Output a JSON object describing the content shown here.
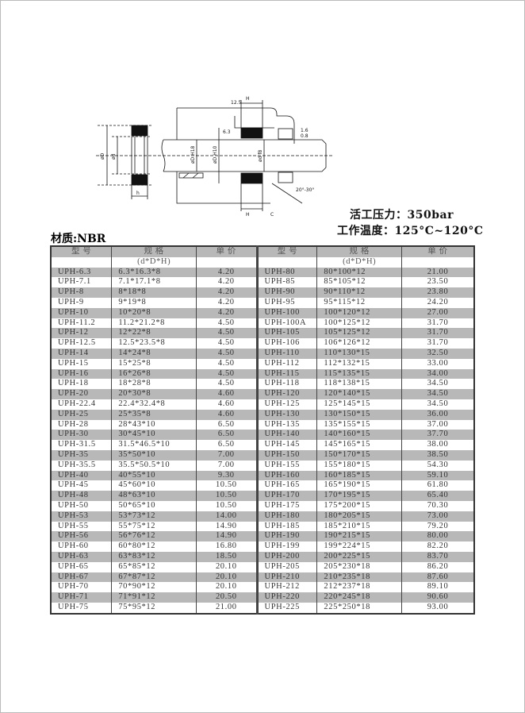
{
  "specs": {
    "pressure": "活工压力：350bar",
    "temperature": "工作温度：125°C~120°C"
  },
  "material": "材质:NBR",
  "drawing_labels": {
    "D": "øD",
    "d": "ød",
    "h": "h",
    "H_top": "H",
    "H_bottom": "H",
    "c": "C",
    "dh18": "øD H18",
    "dh10": "øD H10",
    "f8": "ød f8",
    "angle": "20°-30°",
    "r1": "12.5",
    "r2": "6.3",
    "r3": "1.6",
    "r4": "0.8"
  },
  "table": {
    "headers": [
      "型 号",
      "规 格",
      "单 价",
      "型 号",
      "规 格",
      "单 价"
    ],
    "subheader": "(d*D*H)",
    "rows": [
      [
        "UPH-6.3",
        "6.3*16.3*8",
        "4.20",
        "UPH-80",
        "80*100*12",
        "21.00"
      ],
      [
        "UPH-7.1",
        "7.1*17.1*8",
        "4.20",
        "UPH-85",
        "85*105*12",
        "23.50"
      ],
      [
        "UPH-8",
        "8*18*8",
        "4.20",
        "UPH-90",
        "90*110*12",
        "23.80"
      ],
      [
        "UPH-9",
        "9*19*8",
        "4.20",
        "UPH-95",
        "95*115*12",
        "24.20"
      ],
      [
        "UPH-10",
        "10*20*8",
        "4.20",
        "UPH-100",
        "100*120*12",
        "27.00"
      ],
      [
        "UPH-11.2",
        "11.2*21.2*8",
        "4.50",
        "UPH-100A",
        "100*125*12",
        "31.70"
      ],
      [
        "UPH-12",
        "12*22*8",
        "4.50",
        "UPH-105",
        "105*125*12",
        "31.70"
      ],
      [
        "UPH-12.5",
        "12.5*23.5*8",
        "4.50",
        "UPH-106",
        "106*126*12",
        "31.70"
      ],
      [
        "UPH-14",
        "14*24*8",
        "4.50",
        "UPH-110",
        "110*130*15",
        "32.50"
      ],
      [
        "UPH-15",
        "15*25*8",
        "4.50",
        "UPH-112",
        "112*132*15",
        "33.00"
      ],
      [
        "UPH-16",
        "16*26*8",
        "4.50",
        "UPH-115",
        "115*135*15",
        "34.00"
      ],
      [
        "UPH-18",
        "18*28*8",
        "4.50",
        "UPH-118",
        "118*138*15",
        "34.50"
      ],
      [
        "UPH-20",
        "20*30*8",
        "4.60",
        "UPH-120",
        "120*140*15",
        "34.50"
      ],
      [
        "UPH-22.4",
        "22.4*32.4*8",
        "4.60",
        "UPH-125",
        "125*145*15",
        "34.50"
      ],
      [
        "UPH-25",
        "25*35*8",
        "4.60",
        "UPH-130",
        "130*150*15",
        "36.00"
      ],
      [
        "UPH-28",
        "28*43*10",
        "6.50",
        "UPH-135",
        "135*155*15",
        "37.00"
      ],
      [
        "UPH-30",
        "30*45*10",
        "6.50",
        "UPH-140",
        "140*160*15",
        "37.70"
      ],
      [
        "UPH-31.5",
        "31.5*46.5*10",
        "6.50",
        "UPH-145",
        "145*165*15",
        "38.00"
      ],
      [
        "UPH-35",
        "35*50*10",
        "7.00",
        "UPH-150",
        "150*170*15",
        "38.50"
      ],
      [
        "UPH-35.5",
        "35.5*50.5*10",
        "7.00",
        "UPH-155",
        "155*180*15",
        "54.30"
      ],
      [
        "UPH-40",
        "40*55*10",
        "9.30",
        "UPH-160",
        "160*185*15",
        "59.10"
      ],
      [
        "UPH-45",
        "45*60*10",
        "10.50",
        "UPH-165",
        "165*190*15",
        "61.80"
      ],
      [
        "UPH-48",
        "48*63*10",
        "10.50",
        "UPH-170",
        "170*195*15",
        "65.40"
      ],
      [
        "UPH-50",
        "50*65*10",
        "10.50",
        "UPH-175",
        "175*200*15",
        "70.30"
      ],
      [
        "UPH-53",
        "53*73*12",
        "14.00",
        "UPH-180",
        "180*205*15",
        "73.00"
      ],
      [
        "UPH-55",
        "55*75*12",
        "14.90",
        "UPH-185",
        "185*210*15",
        "79.20"
      ],
      [
        "UPH-56",
        "56*76*12",
        "14.90",
        "UPH-190",
        "190*215*15",
        "80.00"
      ],
      [
        "UPH-60",
        "60*80*12",
        "16.80",
        "UPH-199",
        "199*224*15",
        "82.20"
      ],
      [
        "UPH-63",
        "63*83*12",
        "18.50",
        "UPH-200",
        "200*225*15",
        "83.70"
      ],
      [
        "UPH-65",
        "65*85*12",
        "20.10",
        "UPH-205",
        "205*230*18",
        "86.20"
      ],
      [
        "UPH-67",
        "67*87*12",
        "20.10",
        "UPH-210",
        "210*235*18",
        "87.60"
      ],
      [
        "UPH-70",
        "70*90*12",
        "20.10",
        "UPH-212",
        "212*237*18",
        "89.10"
      ],
      [
        "UPH-71",
        "71*91*12",
        "20.50",
        "UPH-220",
        "220*245*18",
        "90.60"
      ],
      [
        "UPH-75",
        "75*95*12",
        "21.00",
        "UPH-225",
        "225*250*18",
        "93.00"
      ]
    ]
  },
  "colors": {
    "row_shade": "#b8b8b8",
    "border": "#333333"
  }
}
